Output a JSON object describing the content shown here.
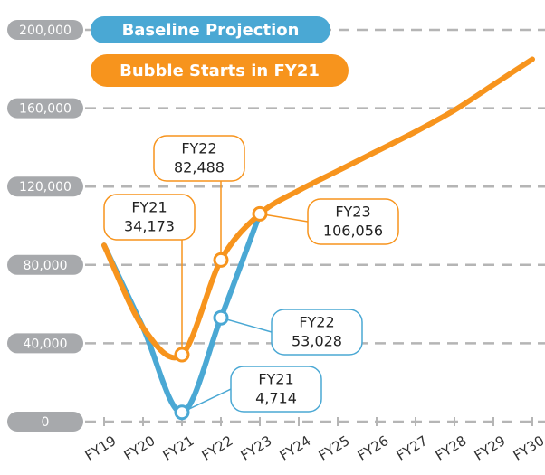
{
  "chart_data": {
    "type": "line",
    "categories": [
      "FY19",
      "FY20",
      "FY21",
      "FY22",
      "FY23",
      "FY24",
      "FY25",
      "FY26",
      "FY27",
      "FY28",
      "FY29",
      "FY30"
    ],
    "series": [
      {
        "name": "Baseline Projection",
        "color": "#4aa8d4",
        "values": [
          90000,
          48000,
          4714,
          53028,
          106056,
          null,
          null,
          null,
          null,
          null,
          null,
          null
        ],
        "value_labels": [
          null,
          null,
          "4,714",
          "53,028",
          null,
          null,
          null,
          null,
          null,
          null,
          null,
          null
        ]
      },
      {
        "name": "Bubble Starts in FY21",
        "color": "#f7941d",
        "values": [
          90000,
          48000,
          34173,
          82488,
          106056,
          118000,
          128000,
          138000,
          148000,
          159000,
          172000,
          185000
        ],
        "value_labels": [
          null,
          null,
          "34,173",
          "82,488",
          "106,056",
          null,
          null,
          null,
          null,
          null,
          null,
          null
        ]
      }
    ],
    "ylim": [
      0,
      200000
    ],
    "yticks": [
      {
        "value": 0,
        "label": "0"
      },
      {
        "value": 40000,
        "label": "40,000"
      },
      {
        "value": 80000,
        "label": "80,000"
      },
      {
        "value": 120000,
        "label": "120,000"
      },
      {
        "value": 160000,
        "label": "160,000"
      },
      {
        "value": 200000,
        "label": "200,000"
      }
    ],
    "grid": true
  }
}
